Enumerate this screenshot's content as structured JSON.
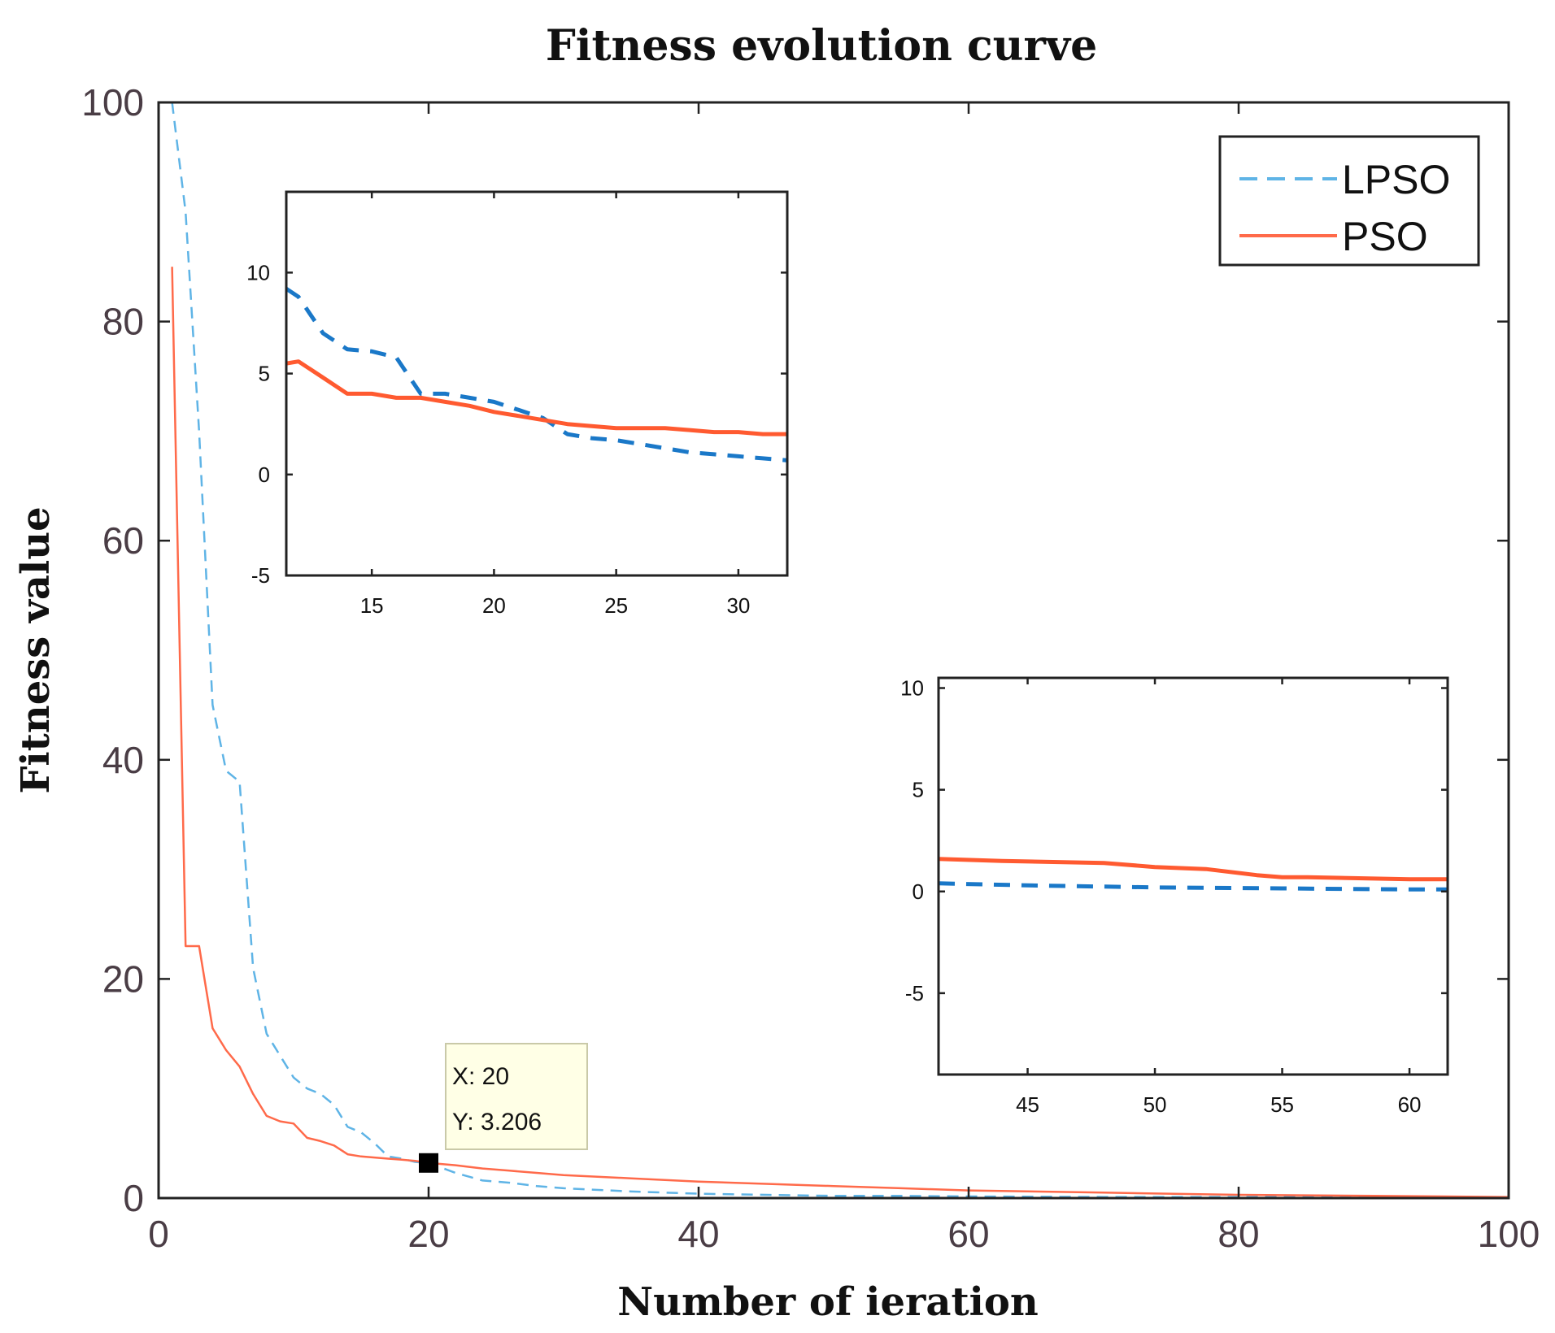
{
  "chart_data": [
    {
      "type": "line",
      "title": "Fitness evolution curve",
      "xlabel": "Number of ieration",
      "ylabel": "Fitness value",
      "xlim": [
        0,
        100
      ],
      "ylim": [
        0,
        100
      ],
      "xticks": [
        0,
        20,
        40,
        60,
        80,
        100
      ],
      "yticks": [
        0,
        20,
        40,
        60,
        80,
        100
      ],
      "xtick_labels": [
        "0",
        "20",
        "40",
        "60",
        "80",
        "100"
      ],
      "ytick_labels": [
        "0",
        "20",
        "40",
        "60",
        "80",
        "100"
      ],
      "legend_position": "top-right",
      "series": [
        {
          "name": "LPSO",
          "style": "dashed",
          "color": "#5fb4e6",
          "x": [
            1,
            2,
            3,
            4,
            5,
            6,
            7,
            8,
            9,
            10,
            11,
            12,
            13,
            14,
            15,
            16,
            17,
            18,
            19,
            20,
            22,
            24,
            26,
            28,
            30,
            35,
            40,
            45,
            50,
            55,
            60,
            70,
            80,
            90,
            100
          ],
          "y": [
            100,
            90,
            70,
            45,
            39,
            38,
            21,
            15,
            13,
            11,
            10,
            9.5,
            8.5,
            6.5,
            6,
            5,
            3.8,
            3.6,
            3.3,
            3.2,
            2.3,
            1.6,
            1.4,
            1.1,
            0.9,
            0.6,
            0.4,
            0.3,
            0.2,
            0.2,
            0.15,
            0.1,
            0.1,
            0.1,
            0.1
          ]
        },
        {
          "name": "PSO",
          "style": "solid",
          "color": "#ff6a4a",
          "x": [
            1,
            2,
            3,
            4,
            5,
            6,
            7,
            8,
            9,
            10,
            11,
            12,
            13,
            14,
            15,
            16,
            17,
            18,
            19,
            20,
            22,
            24,
            26,
            28,
            30,
            35,
            40,
            45,
            50,
            55,
            60,
            70,
            80,
            90,
            100
          ],
          "y": [
            85,
            23,
            23,
            15.5,
            13.5,
            12,
            9.5,
            7.5,
            7,
            6.8,
            5.5,
            5.2,
            4.8,
            4,
            3.8,
            3.7,
            3.6,
            3.5,
            3.4,
            3.206,
            3,
            2.7,
            2.5,
            2.3,
            2.1,
            1.8,
            1.5,
            1.3,
            1.1,
            0.9,
            0.7,
            0.5,
            0.3,
            0.2,
            0.1
          ]
        }
      ],
      "annotation": {
        "x_value": 20,
        "y_value": 3.206,
        "x_text": "X: 20",
        "y_text": "Y: 3.206"
      }
    },
    {
      "type": "line",
      "inset": "upper-left",
      "xlim": [
        11.5,
        32
      ],
      "ylim": [
        -5,
        14
      ],
      "xticks": [
        15,
        20,
        25,
        30
      ],
      "yticks": [
        -5,
        0,
        5,
        10
      ],
      "xtick_labels": [
        "15",
        "20",
        "25",
        "30"
      ],
      "ytick_labels": [
        "-5",
        "0",
        "5",
        "10"
      ],
      "series": [
        {
          "name": "LPSO",
          "style": "dashed",
          "color": "#1a78c8",
          "x": [
            11.5,
            12,
            13,
            14,
            15,
            16,
            17,
            18,
            19,
            20,
            21,
            22,
            23,
            24,
            25,
            26,
            27,
            28,
            29,
            30,
            31,
            32
          ],
          "y": [
            9.2,
            8.8,
            7.0,
            6.2,
            6.1,
            5.8,
            4.0,
            4.0,
            3.8,
            3.6,
            3.2,
            2.8,
            2.0,
            1.8,
            1.7,
            1.5,
            1.3,
            1.1,
            1.0,
            0.9,
            0.8,
            0.7
          ]
        },
        {
          "name": "PSO",
          "style": "solid",
          "color": "#ff5a30",
          "x": [
            11.5,
            12,
            13,
            14,
            15,
            16,
            17,
            18,
            19,
            20,
            21,
            22,
            23,
            24,
            25,
            26,
            27,
            28,
            29,
            30,
            31,
            32
          ],
          "y": [
            5.5,
            5.6,
            4.8,
            4.0,
            4.0,
            3.8,
            3.8,
            3.6,
            3.4,
            3.1,
            2.9,
            2.7,
            2.5,
            2.4,
            2.3,
            2.3,
            2.3,
            2.2,
            2.1,
            2.1,
            2.0,
            2.0
          ]
        }
      ]
    },
    {
      "type": "line",
      "inset": "lower-right",
      "xlim": [
        41.5,
        61.5
      ],
      "ylim": [
        -9,
        10.5
      ],
      "xticks": [
        45,
        50,
        55,
        60
      ],
      "yticks": [
        -5,
        0,
        5,
        10
      ],
      "xtick_labels": [
        "45",
        "50",
        "55",
        "60"
      ],
      "ytick_labels": [
        "-5",
        "0",
        "5",
        "10"
      ],
      "series": [
        {
          "name": "LPSO",
          "style": "dashed",
          "color": "#1a78c8",
          "x": [
            41.5,
            45,
            50,
            55,
            60,
            61.5
          ],
          "y": [
            0.4,
            0.3,
            0.2,
            0.15,
            0.1,
            0.1
          ]
        },
        {
          "name": "PSO",
          "style": "solid",
          "color": "#ff5a30",
          "x": [
            41.5,
            44,
            46,
            48,
            50,
            52,
            54,
            55,
            56,
            58,
            60,
            61.5
          ],
          "y": [
            1.6,
            1.5,
            1.45,
            1.4,
            1.2,
            1.1,
            0.8,
            0.7,
            0.7,
            0.65,
            0.6,
            0.6
          ]
        }
      ]
    }
  ]
}
